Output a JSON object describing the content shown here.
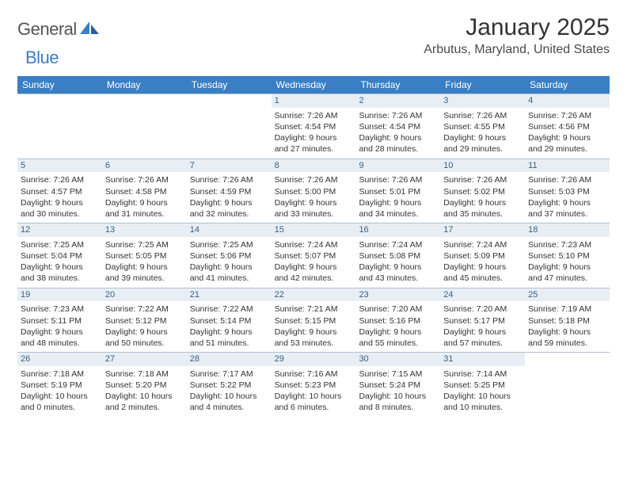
{
  "logo": {
    "text1": "General",
    "text2": "Blue"
  },
  "title": "January 2025",
  "location": "Arbutus, Maryland, United States",
  "colors": {
    "header_bg": "#3a7fc4",
    "header_text": "#ffffff",
    "daynum_bg": "#e8eef4",
    "daynum_text": "#3a5f85",
    "border": "#b0c0d0",
    "text": "#333333"
  },
  "day_names": [
    "Sunday",
    "Monday",
    "Tuesday",
    "Wednesday",
    "Thursday",
    "Friday",
    "Saturday"
  ],
  "weeks": [
    [
      null,
      null,
      null,
      {
        "n": "1",
        "sunrise": "7:26 AM",
        "sunset": "4:54 PM",
        "day_h": 9,
        "day_m": 27
      },
      {
        "n": "2",
        "sunrise": "7:26 AM",
        "sunset": "4:54 PM",
        "day_h": 9,
        "day_m": 28
      },
      {
        "n": "3",
        "sunrise": "7:26 AM",
        "sunset": "4:55 PM",
        "day_h": 9,
        "day_m": 29
      },
      {
        "n": "4",
        "sunrise": "7:26 AM",
        "sunset": "4:56 PM",
        "day_h": 9,
        "day_m": 29
      }
    ],
    [
      {
        "n": "5",
        "sunrise": "7:26 AM",
        "sunset": "4:57 PM",
        "day_h": 9,
        "day_m": 30
      },
      {
        "n": "6",
        "sunrise": "7:26 AM",
        "sunset": "4:58 PM",
        "day_h": 9,
        "day_m": 31
      },
      {
        "n": "7",
        "sunrise": "7:26 AM",
        "sunset": "4:59 PM",
        "day_h": 9,
        "day_m": 32
      },
      {
        "n": "8",
        "sunrise": "7:26 AM",
        "sunset": "5:00 PM",
        "day_h": 9,
        "day_m": 33
      },
      {
        "n": "9",
        "sunrise": "7:26 AM",
        "sunset": "5:01 PM",
        "day_h": 9,
        "day_m": 34
      },
      {
        "n": "10",
        "sunrise": "7:26 AM",
        "sunset": "5:02 PM",
        "day_h": 9,
        "day_m": 35
      },
      {
        "n": "11",
        "sunrise": "7:26 AM",
        "sunset": "5:03 PM",
        "day_h": 9,
        "day_m": 37
      }
    ],
    [
      {
        "n": "12",
        "sunrise": "7:25 AM",
        "sunset": "5:04 PM",
        "day_h": 9,
        "day_m": 38
      },
      {
        "n": "13",
        "sunrise": "7:25 AM",
        "sunset": "5:05 PM",
        "day_h": 9,
        "day_m": 39
      },
      {
        "n": "14",
        "sunrise": "7:25 AM",
        "sunset": "5:06 PM",
        "day_h": 9,
        "day_m": 41
      },
      {
        "n": "15",
        "sunrise": "7:24 AM",
        "sunset": "5:07 PM",
        "day_h": 9,
        "day_m": 42
      },
      {
        "n": "16",
        "sunrise": "7:24 AM",
        "sunset": "5:08 PM",
        "day_h": 9,
        "day_m": 43
      },
      {
        "n": "17",
        "sunrise": "7:24 AM",
        "sunset": "5:09 PM",
        "day_h": 9,
        "day_m": 45
      },
      {
        "n": "18",
        "sunrise": "7:23 AM",
        "sunset": "5:10 PM",
        "day_h": 9,
        "day_m": 47
      }
    ],
    [
      {
        "n": "19",
        "sunrise": "7:23 AM",
        "sunset": "5:11 PM",
        "day_h": 9,
        "day_m": 48
      },
      {
        "n": "20",
        "sunrise": "7:22 AM",
        "sunset": "5:12 PM",
        "day_h": 9,
        "day_m": 50
      },
      {
        "n": "21",
        "sunrise": "7:22 AM",
        "sunset": "5:14 PM",
        "day_h": 9,
        "day_m": 51
      },
      {
        "n": "22",
        "sunrise": "7:21 AM",
        "sunset": "5:15 PM",
        "day_h": 9,
        "day_m": 53
      },
      {
        "n": "23",
        "sunrise": "7:20 AM",
        "sunset": "5:16 PM",
        "day_h": 9,
        "day_m": 55
      },
      {
        "n": "24",
        "sunrise": "7:20 AM",
        "sunset": "5:17 PM",
        "day_h": 9,
        "day_m": 57
      },
      {
        "n": "25",
        "sunrise": "7:19 AM",
        "sunset": "5:18 PM",
        "day_h": 9,
        "day_m": 59
      }
    ],
    [
      {
        "n": "26",
        "sunrise": "7:18 AM",
        "sunset": "5:19 PM",
        "day_h": 10,
        "day_m": 0
      },
      {
        "n": "27",
        "sunrise": "7:18 AM",
        "sunset": "5:20 PM",
        "day_h": 10,
        "day_m": 2
      },
      {
        "n": "28",
        "sunrise": "7:17 AM",
        "sunset": "5:22 PM",
        "day_h": 10,
        "day_m": 4
      },
      {
        "n": "29",
        "sunrise": "7:16 AM",
        "sunset": "5:23 PM",
        "day_h": 10,
        "day_m": 6
      },
      {
        "n": "30",
        "sunrise": "7:15 AM",
        "sunset": "5:24 PM",
        "day_h": 10,
        "day_m": 8
      },
      {
        "n": "31",
        "sunrise": "7:14 AM",
        "sunset": "5:25 PM",
        "day_h": 10,
        "day_m": 10
      },
      null
    ]
  ],
  "labels": {
    "sunrise": "Sunrise:",
    "sunset": "Sunset:",
    "daylight": "Daylight:",
    "hours": "hours",
    "and": "and",
    "minutes": "minutes."
  }
}
